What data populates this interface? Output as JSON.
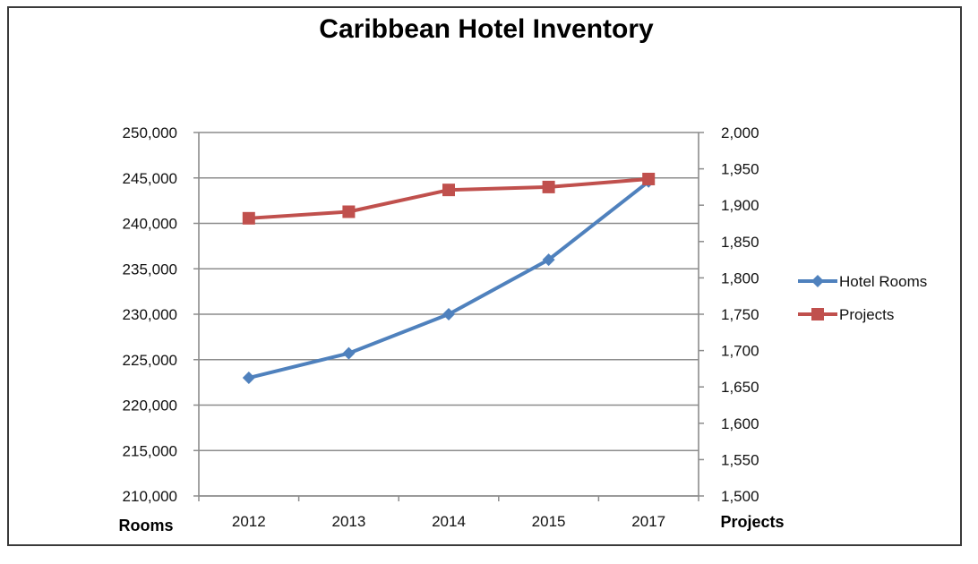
{
  "chart_data": {
    "type": "line",
    "title": "Caribbean Hotel Inventory",
    "categories": [
      "2012",
      "2013",
      "2014",
      "2015",
      "2017"
    ],
    "left_axis": {
      "label": "Rooms",
      "min": 210000,
      "max": 250000,
      "step": 5000,
      "ticks": [
        "210,000",
        "215,000",
        "220,000",
        "225,000",
        "230,000",
        "235,000",
        "240,000",
        "245,000",
        "250,000"
      ]
    },
    "right_axis": {
      "label": "Projects",
      "min": 1500,
      "max": 2000,
      "step": 50,
      "ticks": [
        "1,500",
        "1,550",
        "1,600",
        "1,650",
        "1,700",
        "1,750",
        "1,800",
        "1,850",
        "1,900",
        "1,950",
        "2,000"
      ]
    },
    "series": [
      {
        "name": "Hotel Rooms",
        "axis": "left",
        "color": "#4f81bd",
        "marker": "diamond",
        "values": [
          223000,
          225700,
          230000,
          236000,
          244600
        ]
      },
      {
        "name": "Projects",
        "axis": "right",
        "color": "#c0504d",
        "marker": "square",
        "values": [
          1882,
          1891,
          1921,
          1925,
          1936
        ]
      }
    ],
    "grid": true,
    "legend_position": "right"
  }
}
